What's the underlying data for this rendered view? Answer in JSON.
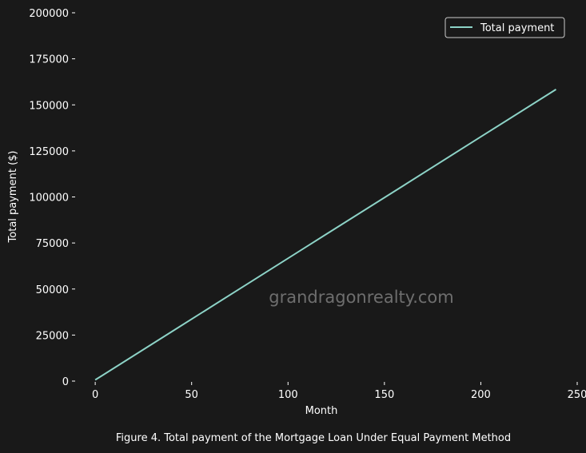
{
  "colors": {
    "background": "#191919",
    "text": "#ffffff",
    "series": "#8dd3c7",
    "watermark": "#6e6e6e",
    "legend_border": "#cccccc"
  },
  "watermark": "grandragonrealty.com",
  "caption": "Figure 4. Total payment of the Mortgage Loan Under Equal Payment Method",
  "chart_data": {
    "type": "line",
    "xlabel": "Month",
    "ylabel": "Total payment ($)",
    "xlim": [
      -10,
      250
    ],
    "ylim": [
      0,
      200000
    ],
    "xticks": [
      0,
      50,
      100,
      150,
      200,
      250
    ],
    "yticks": [
      0,
      25000,
      50000,
      75000,
      100000,
      125000,
      150000,
      175000,
      200000
    ],
    "grid": false,
    "legend_position": "top-right",
    "series": [
      {
        "name": "Total payment",
        "color": "#8dd3c7",
        "x": [
          0,
          40,
          80,
          120,
          160,
          200,
          239
        ],
        "y": [
          660,
          27050,
          53450,
          79850,
          106250,
          132650,
          158400
        ]
      }
    ]
  }
}
